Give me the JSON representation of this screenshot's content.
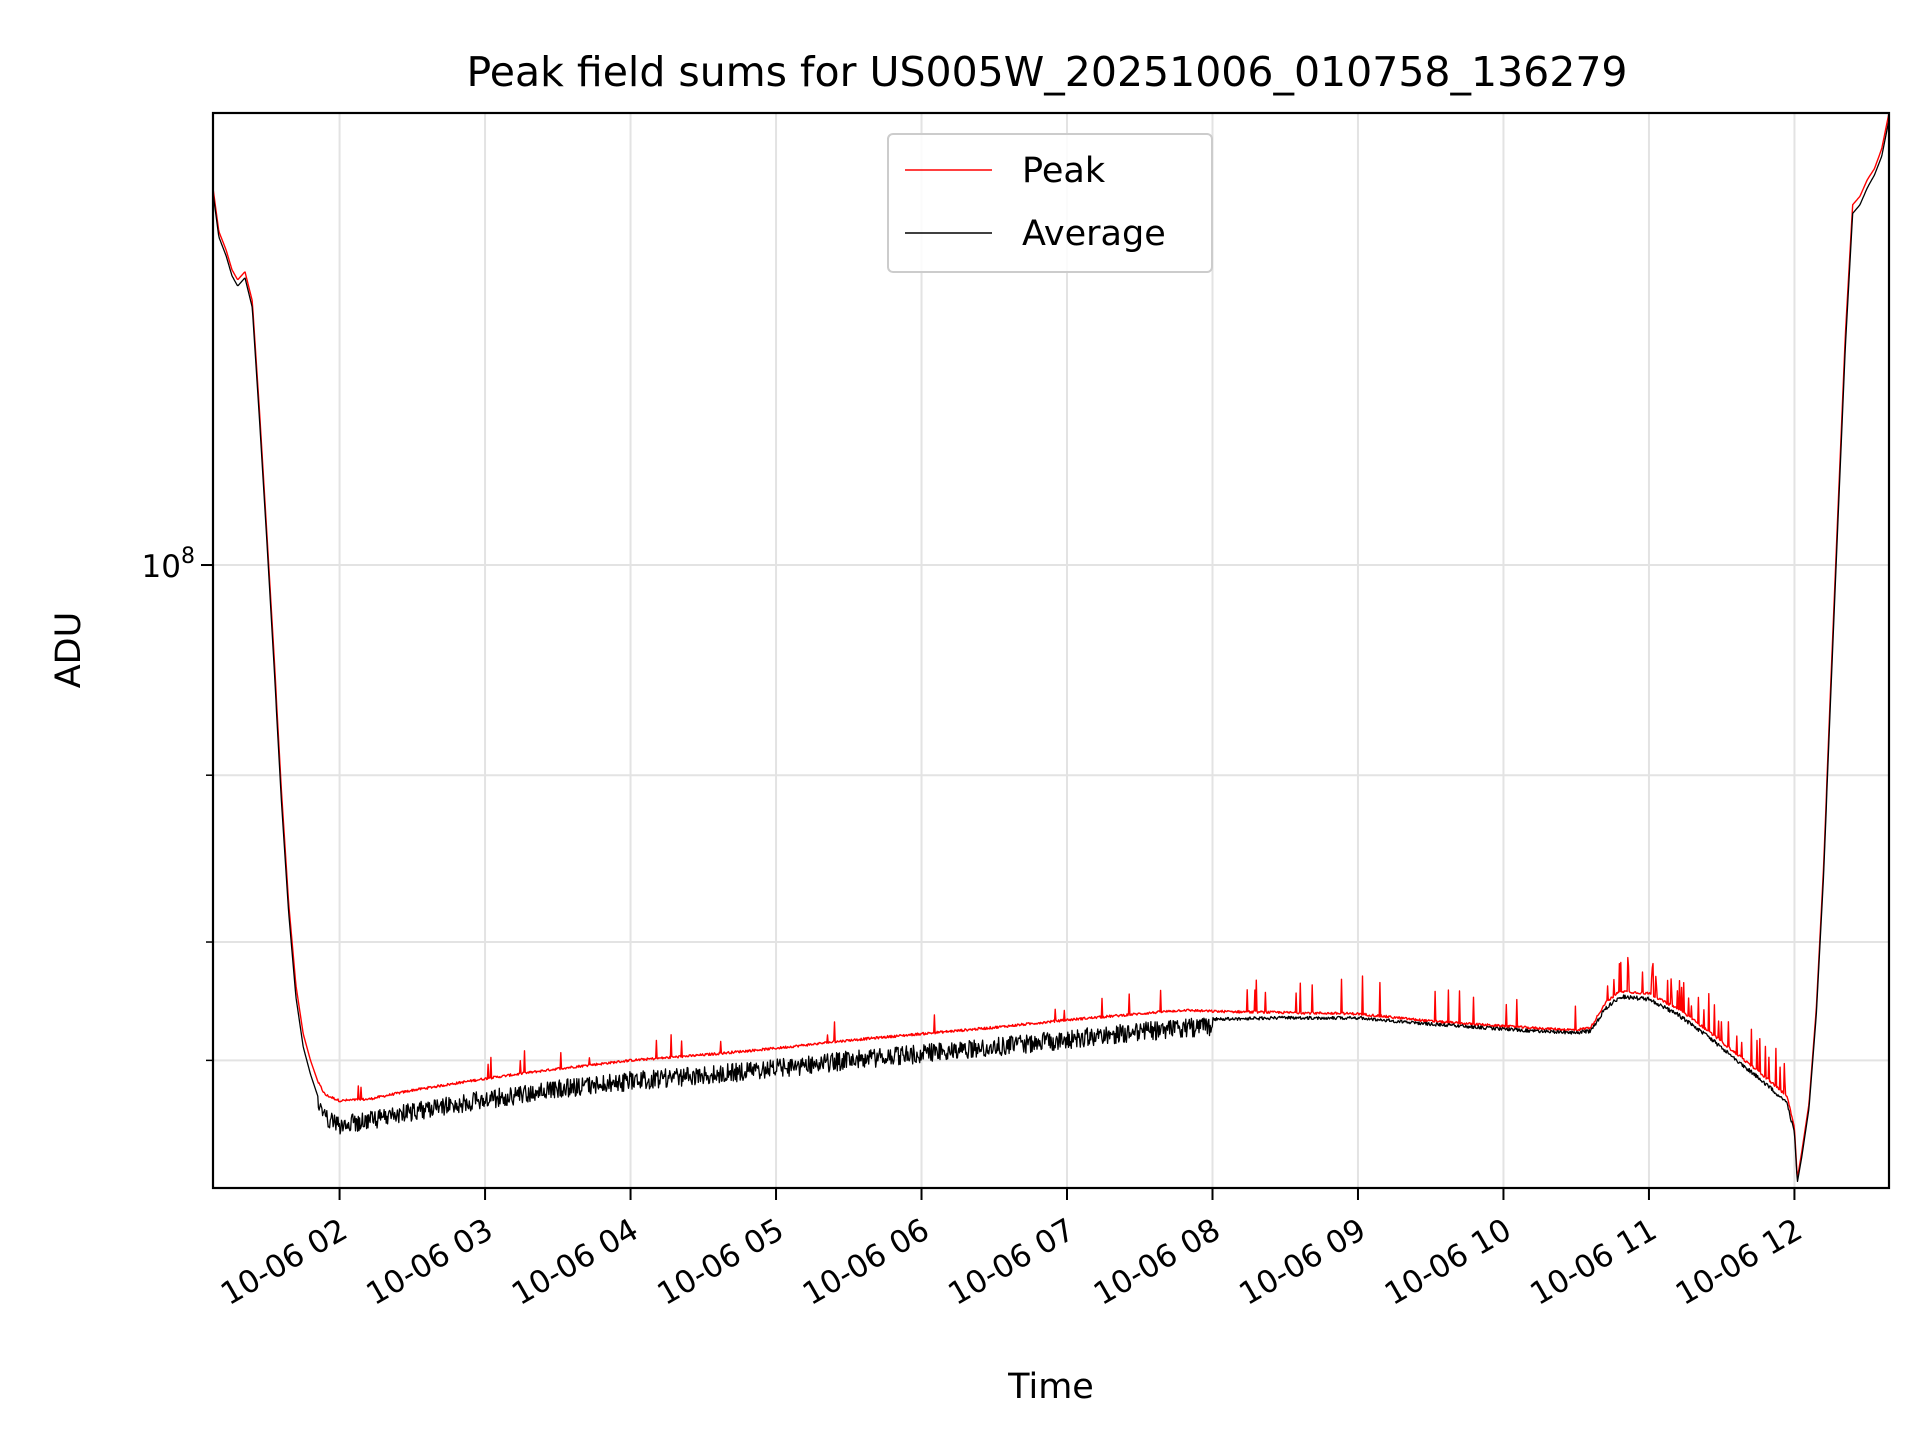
{
  "chart_data": {
    "type": "line",
    "title": "Peak field sums for US005W_20251006_010758_136279",
    "xlabel": "Time",
    "ylabel": "ADU",
    "yscale": "log",
    "ylim": [
      22000000,
      300000000
    ],
    "xlim_hours": [
      1.13,
      12.65
    ],
    "grid": true,
    "legend_position": "upper-center",
    "x_tick_labels": [
      "10-06 02",
      "10-06 03",
      "10-06 04",
      "10-06 05",
      "10-06 06",
      "10-06 07",
      "10-06 08",
      "10-06 09",
      "10-06 10",
      "10-06 11",
      "10-06 12"
    ],
    "x_tick_hours": [
      2,
      3,
      4,
      5,
      6,
      7,
      8,
      9,
      10,
      11,
      12
    ],
    "y_major_ticks": [
      {
        "value": 100000000,
        "base": "10",
        "exp": "8"
      }
    ],
    "y_minor_ticks": [
      30000000,
      40000000,
      60000000
    ],
    "series": [
      {
        "name": "Peak",
        "color": "#ff0000",
        "points": [
          [
            1.13,
            250000000
          ],
          [
            1.17,
            225000000
          ],
          [
            1.22,
            215000000
          ],
          [
            1.26,
            205000000
          ],
          [
            1.3,
            200000000
          ],
          [
            1.35,
            204000000
          ],
          [
            1.4,
            190000000
          ],
          [
            1.45,
            145000000
          ],
          [
            1.5,
            108000000
          ],
          [
            1.55,
            80000000
          ],
          [
            1.6,
            58000000
          ],
          [
            1.65,
            44000000
          ],
          [
            1.7,
            36000000
          ],
          [
            1.75,
            32000000
          ],
          [
            1.8,
            30000000
          ],
          [
            1.85,
            28500000
          ],
          [
            1.9,
            27600000
          ],
          [
            2.0,
            27200000
          ],
          [
            2.2,
            27300000
          ],
          [
            2.5,
            27900000
          ],
          [
            3.0,
            28700000
          ],
          [
            3.5,
            29400000
          ],
          [
            4.0,
            30000000
          ],
          [
            4.5,
            30400000
          ],
          [
            5.0,
            30900000
          ],
          [
            5.5,
            31500000
          ],
          [
            6.0,
            32000000
          ],
          [
            6.5,
            32500000
          ],
          [
            7.0,
            33100000
          ],
          [
            7.5,
            33600000
          ],
          [
            7.8,
            33900000
          ],
          [
            8.0,
            33800000
          ],
          [
            8.5,
            33700000
          ],
          [
            9.0,
            33600000
          ],
          [
            9.5,
            33000000
          ],
          [
            10.0,
            32600000
          ],
          [
            10.3,
            32400000
          ],
          [
            10.5,
            32300000
          ],
          [
            10.6,
            32500000
          ],
          [
            10.7,
            34500000
          ],
          [
            10.8,
            35500000
          ],
          [
            11.0,
            35300000
          ],
          [
            11.2,
            34000000
          ],
          [
            11.4,
            32300000
          ],
          [
            11.6,
            30500000
          ],
          [
            11.8,
            28800000
          ],
          [
            11.95,
            27500000
          ],
          [
            12.0,
            25500000
          ],
          [
            12.02,
            22500000
          ],
          [
            12.05,
            24000000
          ],
          [
            12.1,
            27000000
          ],
          [
            12.15,
            34000000
          ],
          [
            12.2,
            48000000
          ],
          [
            12.25,
            75000000
          ],
          [
            12.3,
            115000000
          ],
          [
            12.35,
            175000000
          ],
          [
            12.4,
            240000000
          ],
          [
            12.45,
            245000000
          ],
          [
            12.5,
            255000000
          ],
          [
            12.55,
            262000000
          ],
          [
            12.6,
            275000000
          ],
          [
            12.65,
            300000000
          ]
        ]
      },
      {
        "name": "Average",
        "color": "#000000",
        "points": [
          [
            1.13,
            247000000
          ],
          [
            1.17,
            222000000
          ],
          [
            1.22,
            212000000
          ],
          [
            1.26,
            202000000
          ],
          [
            1.3,
            197000000
          ],
          [
            1.35,
            201000000
          ],
          [
            1.4,
            187000000
          ],
          [
            1.45,
            142000000
          ],
          [
            1.5,
            106000000
          ],
          [
            1.55,
            78000000
          ],
          [
            1.6,
            56500000
          ],
          [
            1.65,
            43000000
          ],
          [
            1.7,
            35000000
          ],
          [
            1.75,
            31000000
          ],
          [
            1.8,
            29000000
          ],
          [
            1.85,
            27500000
          ],
          [
            1.9,
            26600000
          ],
          [
            2.0,
            26200000
          ],
          [
            2.2,
            26500000
          ],
          [
            2.5,
            27100000
          ],
          [
            3.0,
            27900000
          ],
          [
            3.5,
            28600000
          ],
          [
            4.0,
            29200000
          ],
          [
            4.5,
            29600000
          ],
          [
            5.0,
            30100000
          ],
          [
            5.5,
            30700000
          ],
          [
            6.0,
            31200000
          ],
          [
            6.5,
            31700000
          ],
          [
            7.0,
            32300000
          ],
          [
            7.5,
            32900000
          ],
          [
            7.8,
            33200000
          ],
          [
            8.0,
            33300000
          ],
          [
            8.5,
            33400000
          ],
          [
            9.0,
            33400000
          ],
          [
            9.5,
            32900000
          ],
          [
            10.0,
            32500000
          ],
          [
            10.3,
            32300000
          ],
          [
            10.5,
            32200000
          ],
          [
            10.6,
            32400000
          ],
          [
            10.7,
            34200000
          ],
          [
            10.8,
            35200000
          ],
          [
            11.0,
            35000000
          ],
          [
            11.2,
            33700000
          ],
          [
            11.4,
            32000000
          ],
          [
            11.6,
            30200000
          ],
          [
            11.8,
            28500000
          ],
          [
            11.95,
            27200000
          ],
          [
            12.0,
            25200000
          ],
          [
            12.02,
            22300000
          ],
          [
            12.05,
            23700000
          ],
          [
            12.1,
            26700000
          ],
          [
            12.15,
            33500000
          ],
          [
            12.2,
            47000000
          ],
          [
            12.25,
            73000000
          ],
          [
            12.3,
            112000000
          ],
          [
            12.35,
            170000000
          ],
          [
            12.4,
            235000000
          ],
          [
            12.45,
            240000000
          ],
          [
            12.5,
            250000000
          ],
          [
            12.55,
            258000000
          ],
          [
            12.6,
            270000000
          ],
          [
            12.65,
            295000000
          ]
        ]
      }
    ]
  }
}
